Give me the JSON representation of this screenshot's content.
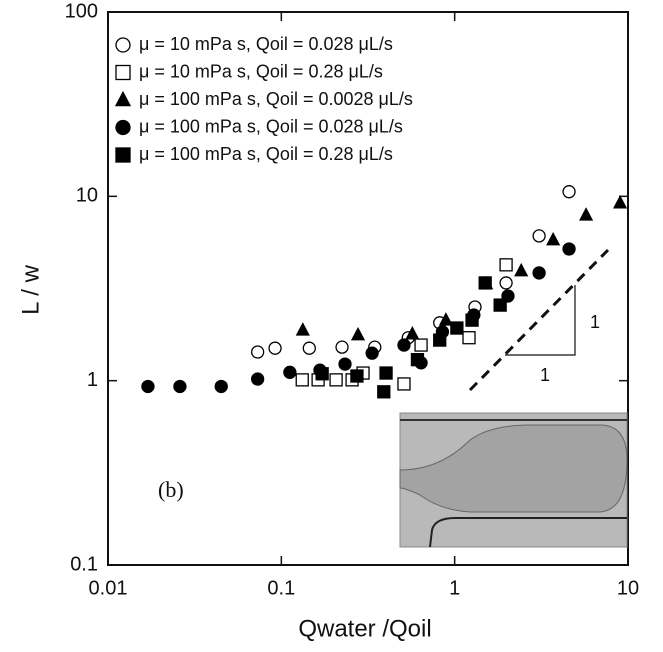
{
  "chart_data": {
    "type": "scatter",
    "log_x": true,
    "log_y": true,
    "x_label": "Qwater /Qoil",
    "y_label": "L / w",
    "xlim": [
      0.01,
      10
    ],
    "xticks": [
      0.01,
      0.1,
      1,
      10
    ],
    "ylim": [
      0.1,
      100
    ],
    "yticks": [
      0.1,
      1,
      10,
      100
    ],
    "legend": "upper left",
    "annotations": [
      "(b)",
      "1",
      "1"
    ],
    "series": [
      {
        "name": "μ = 10 mPa s, Qoil = 0.028 μL/s",
        "color": "#000000",
        "marker": "circle",
        "filled": false,
        "x": [
          0.073,
          0.092,
          0.145,
          0.224,
          0.346,
          0.54,
          0.82,
          1.31,
          1.98,
          3.07,
          4.57
        ],
        "values": [
          1.43,
          1.5,
          1.5,
          1.52,
          1.52,
          1.71,
          2.06,
          2.51,
          3.39,
          6.1,
          10.6
        ]
      },
      {
        "name": "μ = 10 mPa s, Qoil = 0.28 μL/s",
        "color": "#000000",
        "marker": "square",
        "filled": false,
        "x": [
          0.132,
          0.163,
          0.207,
          0.256,
          0.296,
          0.51,
          0.64,
          1.21,
          1.98
        ],
        "values": [
          1.01,
          1.01,
          1.01,
          1.01,
          1.1,
          0.96,
          1.56,
          1.71,
          4.25
        ]
      },
      {
        "name": "μ = 100 mPa s, Qoil = 0.0028 μL/s",
        "color": "#000000",
        "marker": "triangle",
        "filled": true,
        "x": [
          0.133,
          0.277,
          0.57,
          0.89,
          1.52,
          2.42,
          3.7,
          5.73,
          9.0
        ],
        "values": [
          1.88,
          1.77,
          1.79,
          2.13,
          3.35,
          3.94,
          5.8,
          7.9,
          9.2
        ]
      },
      {
        "name": "μ = 100 mPa s, Qoil = 0.028 μL/s",
        "color": "#000000",
        "marker": "circle",
        "filled": true,
        "x": [
          0.017,
          0.026,
          0.045,
          0.073,
          0.112,
          0.167,
          0.233,
          0.334,
          0.51,
          0.64,
          0.85,
          1.29,
          2.03,
          3.07,
          4.57
        ],
        "values": [
          0.93,
          0.93,
          0.93,
          1.02,
          1.11,
          1.14,
          1.23,
          1.41,
          1.56,
          1.25,
          1.84,
          2.27,
          2.88,
          3.84,
          5.18
        ]
      },
      {
        "name": "μ = 100 mPa s, Qoil = 0.28 μL/s",
        "color": "#000000",
        "marker": "square",
        "filled": true,
        "x": [
          0.172,
          0.273,
          0.39,
          0.402,
          0.61,
          0.82,
          1.03,
          1.26,
          1.5,
          1.83
        ],
        "values": [
          1.09,
          1.06,
          0.87,
          1.1,
          1.3,
          1.66,
          1.93,
          2.13,
          3.39,
          2.57
        ]
      }
    ]
  }
}
